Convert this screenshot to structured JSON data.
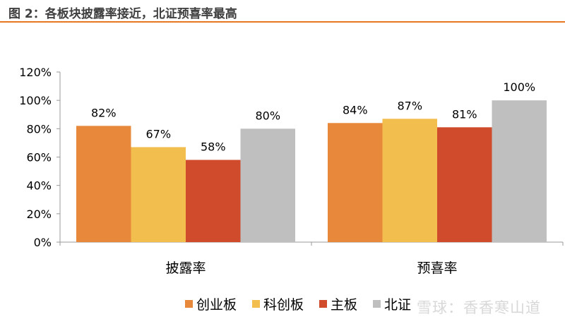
{
  "title": "图 2：各板块披露率接近，北证预喜率最高",
  "watermark": "雪球：香香寒山道",
  "colors": {
    "accent": "#E87722"
  },
  "chart_data": {
    "type": "bar",
    "title": "图 2：各板块披露率接近，北证预喜率最高",
    "xlabel": "",
    "ylabel": "",
    "categories": [
      "披露率",
      "预喜率"
    ],
    "series": [
      {
        "name": "创业板",
        "values": [
          82,
          84
        ],
        "labels": [
          "82%",
          "84%"
        ],
        "color": "#E8883A"
      },
      {
        "name": "科创板",
        "values": [
          67,
          87
        ],
        "labels": [
          "67%",
          "87%"
        ],
        "color": "#F2BE4E"
      },
      {
        "name": "主板",
        "values": [
          58,
          81
        ],
        "labels": [
          "58%",
          "81%"
        ],
        "color": "#CF4B2C"
      },
      {
        "name": "北证",
        "values": [
          80,
          100
        ],
        "labels": [
          "80%",
          "100%"
        ],
        "color": "#BFBFBF"
      }
    ],
    "ylim": [
      0,
      120
    ],
    "yticks": [
      0,
      20,
      40,
      60,
      80,
      100,
      120
    ],
    "ytick_labels": [
      "0%",
      "20%",
      "40%",
      "60%",
      "80%",
      "100%",
      "120%"
    ],
    "grid": false,
    "legend": "bottom"
  }
}
